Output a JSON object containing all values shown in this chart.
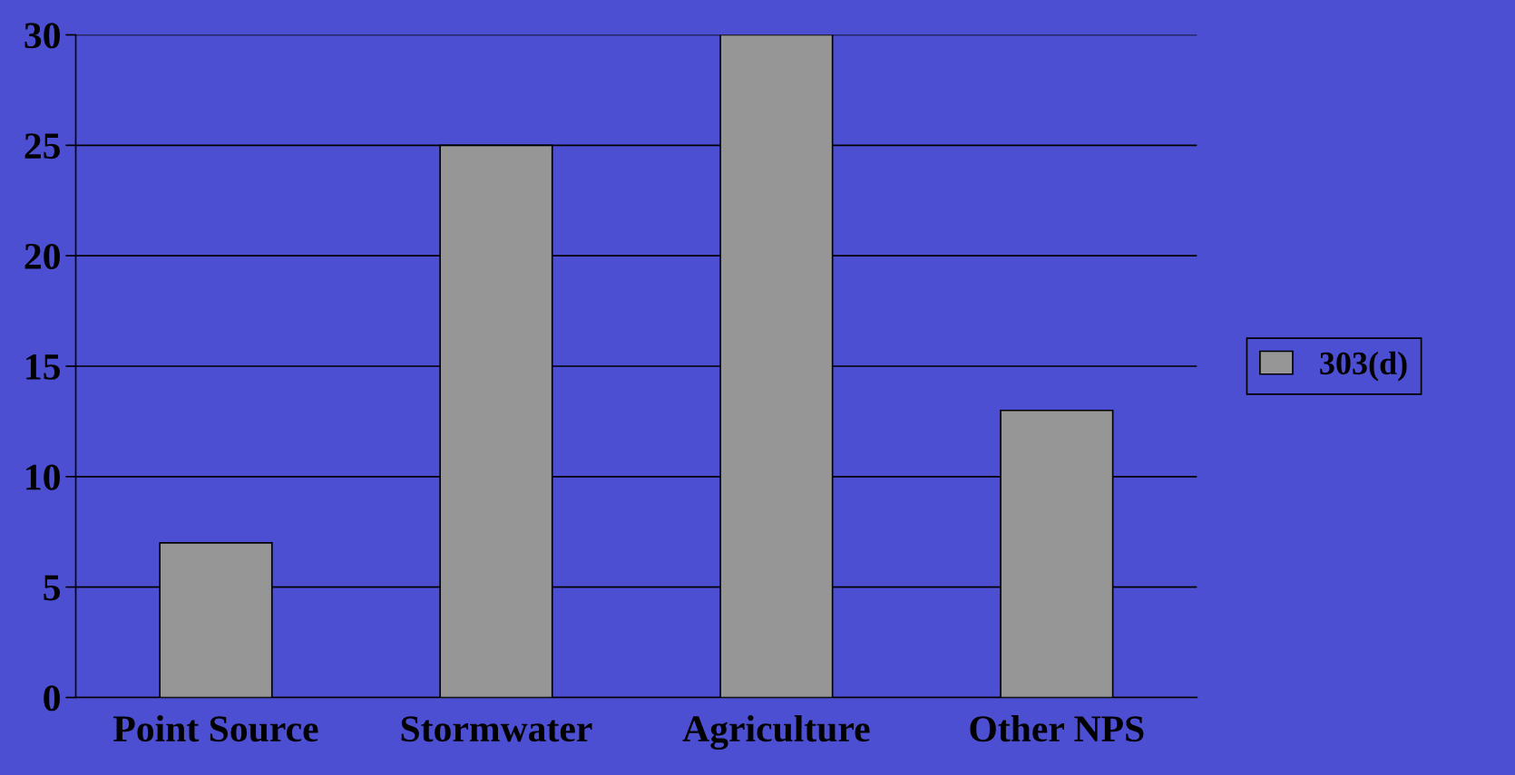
{
  "chart_data": {
    "type": "bar",
    "categories": [
      "Point Source",
      "Stormwater",
      "Agriculture",
      "Other NPS"
    ],
    "series": [
      {
        "name": "303(d)",
        "color": "#969696",
        "values": [
          7,
          25,
          30,
          13
        ]
      }
    ],
    "ylim": [
      0,
      30
    ],
    "yticks": [
      0,
      5,
      10,
      15,
      20,
      25,
      30
    ],
    "grid": "y",
    "legend": "right"
  }
}
